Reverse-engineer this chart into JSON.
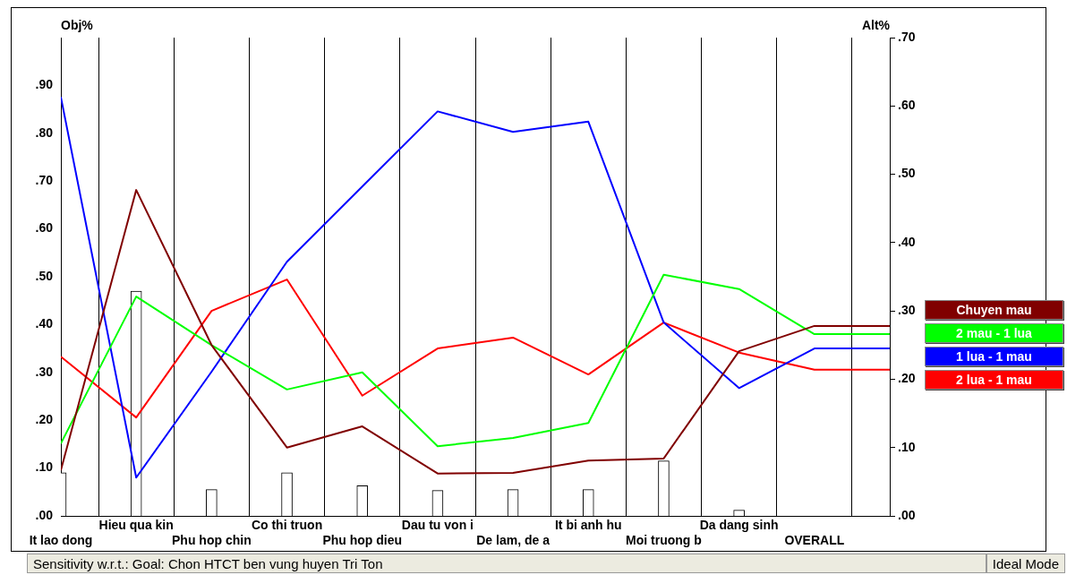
{
  "chart_data": {
    "type": "line",
    "ylabel": "Obj%",
    "y2label": "Alt%",
    "categories": [
      "It lao dong",
      "Hieu qua kin",
      "Phu hop chin",
      "Co thi truon",
      "Phu hop dieu",
      "Dau tu von i",
      "De lam, de a",
      "It bi anh hu",
      "Moi truong b",
      "Da dang sinh",
      "OVERALL",
      null
    ],
    "series": [
      {
        "type": "bar",
        "axis": "y",
        "color": "#ffffff",
        "values": [
          0.09,
          0.47,
          0.055,
          0.09,
          0.063,
          0.053,
          0.055,
          0.055,
          0.115,
          0.012,
          null,
          null
        ]
      },
      {
        "name": "Chuyen mau",
        "axis": "y2",
        "color": "#800000",
        "values": [
          0.067,
          0.477,
          0.25,
          0.1,
          0.131,
          0.062,
          0.063,
          0.081,
          0.084,
          0.241,
          0.278,
          0.278
        ]
      },
      {
        "name": "2 mau - 1 lua",
        "axis": "y2",
        "color": "#00ff00",
        "values": [
          0.106,
          0.321,
          0.25,
          0.185,
          0.21,
          0.102,
          0.114,
          0.136,
          0.353,
          0.332,
          0.266,
          0.266
        ]
      },
      {
        "name": "1 lua - 1 mau",
        "axis": "y2",
        "color": "#0000ff",
        "values": [
          0.613,
          0.056,
          0.211,
          0.372,
          0.482,
          0.592,
          0.562,
          0.577,
          0.283,
          0.187,
          0.245,
          0.245
        ]
      },
      {
        "name": "2 lua - 1 mau",
        "axis": "y2",
        "color": "#ff0000",
        "values": [
          0.233,
          0.144,
          0.3,
          0.346,
          0.176,
          0.245,
          0.261,
          0.207,
          0.283,
          0.239,
          0.214,
          0.214
        ]
      }
    ],
    "ylim": [
      0,
      1
    ],
    "yticks": [
      {
        "value": 0,
        "label": ".00"
      },
      {
        "value": 0.1,
        "label": ".10"
      },
      {
        "value": 0.2,
        "label": ".20"
      },
      {
        "value": 0.3,
        "label": ".30"
      },
      {
        "value": 0.4,
        "label": ".40"
      },
      {
        "value": 0.5,
        "label": ".50"
      },
      {
        "value": 0.6,
        "label": ".60"
      },
      {
        "value": 0.7,
        "label": ".70"
      },
      {
        "value": 0.8,
        "label": ".80"
      },
      {
        "value": 0.9,
        "label": ".90"
      }
    ],
    "y2lim": [
      0,
      0.7
    ],
    "y2ticks": [
      {
        "value": 0,
        "label": ".00"
      },
      {
        "value": 0.1,
        "label": ".10"
      },
      {
        "value": 0.2,
        "label": ".20"
      },
      {
        "value": 0.3,
        "label": ".30"
      },
      {
        "value": 0.4,
        "label": ".40"
      },
      {
        "value": 0.5,
        "label": ".50"
      },
      {
        "value": 0.6,
        "label": ".60"
      },
      {
        "value": 0.7,
        "label": ".70"
      }
    ],
    "grid": "x",
    "legend": "right",
    "marker": "none",
    "line_style": "solid",
    "annotations": [
      "Sensitivity w.r.t.: Goal: Chon HTCT ben vung huyen Tri Ton",
      "Ideal Mode"
    ]
  }
}
